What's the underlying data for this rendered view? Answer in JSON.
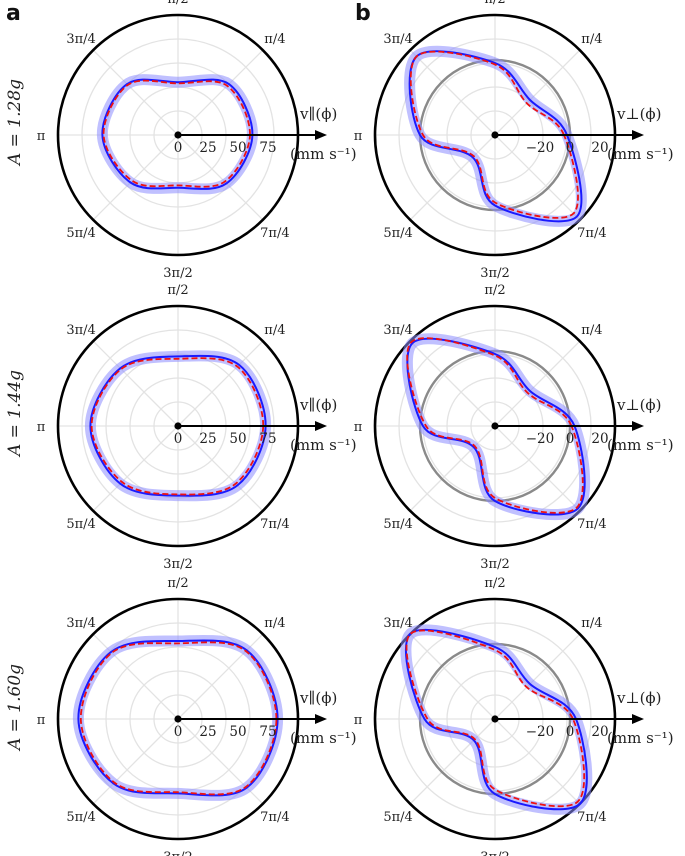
{
  "panel_letters": [
    "a",
    "b"
  ],
  "row_labels": [
    "A = 1.28g",
    "A = 1.44g",
    "A = 1.60g"
  ],
  "angle_labels": [
    "π/2",
    "π/4",
    "3π/4",
    "π",
    "5π/4",
    "3π/2",
    "7π/4"
  ],
  "axis_label_parallel": "v∥(ϕ)",
  "axis_label_perp": "v⊥(ϕ)",
  "unit_label": "(mm s⁻¹)",
  "colors": {
    "experiment_line": "#1a1aff",
    "experiment_band": "#8c8cff",
    "model_line": "#ee1111",
    "reference_circle": "#8a8a8a",
    "grid": "#e3e3e3"
  },
  "chart_data": [
    {
      "type": "polar",
      "column": "a",
      "row": "A = 1.28g",
      "axis": "v∥(ϕ)",
      "unit": "(mm s⁻¹)",
      "r_ticks": [
        0,
        25,
        50,
        75
      ],
      "rlim": [
        0,
        100
      ],
      "theta": [
        "0",
        "π/4",
        "π/2",
        "3π/4",
        "π",
        "5π/4",
        "3π/2",
        "7π/4"
      ],
      "series": [
        {
          "values": [
            62,
            60,
            44,
            60,
            63,
            56,
            44,
            57
          ]
        },
        {
          "values": [
            60,
            58,
            43,
            59,
            62,
            54,
            42,
            55
          ]
        }
      ]
    },
    {
      "type": "polar",
      "column": "b",
      "row": "A = 1.28g",
      "axis": "v⊥(ϕ)",
      "unit": "(mm s⁻¹)",
      "r_ticks": [
        -20,
        0,
        20
      ],
      "rlim": [
        -50,
        30
      ],
      "theta": [
        "0",
        "π/4",
        "π/2",
        "3π/4",
        "π",
        "5π/4",
        "3π/2",
        "7π/4"
      ],
      "series": [
        {
          "values": [
            -2,
            -17,
            -2,
            24,
            0,
            -29,
            -3,
            27
          ]
        },
        {
          "values": [
            -4,
            -20,
            -3,
            24,
            -2,
            -30,
            -5,
            24
          ]
        }
      ]
    },
    {
      "type": "polar",
      "column": "a",
      "row": "A = 1.44g",
      "axis": "v∥(ϕ)",
      "unit": "(mm s⁻¹)",
      "r_ticks": [
        0,
        25,
        50,
        75
      ],
      "rlim": [
        0,
        100
      ],
      "theta": [
        "0",
        "π/4",
        "π/2",
        "3π/4",
        "π",
        "5π/4",
        "3π/2",
        "7π/4"
      ],
      "series": [
        {
          "values": [
            73,
            72,
            58,
            68,
            73,
            68,
            58,
            70
          ]
        },
        {
          "values": [
            71,
            70,
            56,
            67,
            72,
            66,
            57,
            68
          ]
        }
      ]
    },
    {
      "type": "polar",
      "column": "b",
      "row": "A = 1.44g",
      "axis": "v⊥(ϕ)",
      "unit": "(mm s⁻¹)",
      "r_ticks": [
        -20,
        0,
        20
      ],
      "rlim": [
        -50,
        30
      ],
      "theta": [
        "0",
        "π/4",
        "π/2",
        "3π/4",
        "π",
        "5π/4",
        "3π/2",
        "7π/4"
      ],
      "series": [
        {
          "values": [
            3,
            -17,
            -2,
            28,
            -2,
            -30,
            0,
            28
          ]
        },
        {
          "values": [
            1,
            -19,
            -3,
            29,
            -4,
            -31,
            -2,
            27
          ]
        }
      ]
    },
    {
      "type": "polar",
      "column": "a",
      "row": "A = 1.60g",
      "axis": "v∥(ϕ)",
      "unit": "(mm s⁻¹)",
      "r_ticks": [
        0,
        25,
        50,
        75
      ],
      "rlim": [
        0,
        100
      ],
      "theta": [
        "0",
        "π/4",
        "π/2",
        "3π/4",
        "π",
        "5π/4",
        "3π/2",
        "7π/4"
      ],
      "series": [
        {
          "values": [
            83,
            81,
            65,
            79,
            83,
            76,
            62,
            81
          ]
        },
        {
          "values": [
            82,
            80,
            63,
            78,
            81,
            75,
            61,
            80
          ]
        }
      ]
    },
    {
      "type": "polar",
      "column": "b",
      "row": "A = 1.60g",
      "axis": "v⊥(ϕ)",
      "unit": "(mm s⁻¹)",
      "r_ticks": [
        -20,
        0,
        20
      ],
      "rlim": [
        -50,
        30
      ],
      "theta": [
        "0",
        "π/4",
        "π/2",
        "3π/4",
        "π",
        "5π/4",
        "3π/2",
        "7π/4"
      ],
      "series": [
        {
          "values": [
            4,
            -17,
            -2,
            30,
            -3,
            -30,
            0,
            30
          ]
        },
        {
          "values": [
            2,
            -20,
            -4,
            30,
            -5,
            -31,
            -3,
            28
          ]
        }
      ]
    }
  ]
}
